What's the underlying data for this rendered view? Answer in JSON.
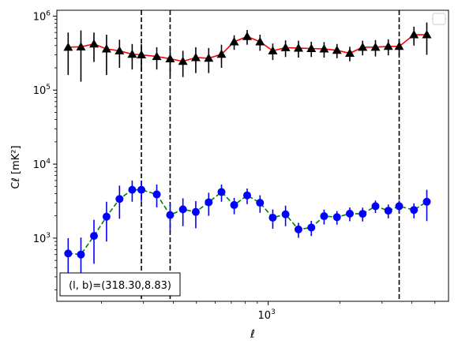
{
  "chart_data": {
    "type": "scatter",
    "xlabel": "ℓ",
    "ylabel": "Cℓ  [mK²]",
    "xscale": "log",
    "yscale": "log",
    "xlim": [
      130,
      5700
    ],
    "ylim": [
      140,
      1200000
    ],
    "xticks": [
      {
        "value": 1000,
        "base": "10",
        "exp": "3"
      }
    ],
    "yticks": [
      {
        "value": 1000,
        "base": "10",
        "exp": "3"
      },
      {
        "value": 10000,
        "base": "10",
        "exp": "4"
      },
      {
        "value": 100000,
        "base": "10",
        "exp": "5"
      },
      {
        "value": 1000000,
        "base": "10",
        "exp": "6"
      }
    ],
    "vlines": [
      294,
      388,
      3540
    ],
    "annotation": "(l, b)=(318.30,8.83)",
    "legend": {
      "placement": "top-right",
      "entries": []
    },
    "series": [
      {
        "marker": "triangle",
        "color": "#000000",
        "line_color": "#ff0000",
        "line_style": "solid",
        "x": [
          145,
          164,
          186,
          210,
          238,
          269,
          294,
          341,
          388,
          439,
          497,
          563,
          637,
          720,
          816,
          924,
          1045,
          1182,
          1339,
          1516,
          1715,
          1942,
          2198,
          2488,
          2816,
          3187,
          3540,
          4083,
          4622
        ],
        "y": [
          380000,
          385000,
          420000,
          360000,
          340000,
          305000,
          300000,
          285000,
          265000,
          245000,
          275000,
          270000,
          305000,
          450000,
          530000,
          450000,
          340000,
          375000,
          370000,
          365000,
          360000,
          345000,
          315000,
          380000,
          380000,
          390000,
          390000,
          560000,
          560000
        ],
        "err_low": [
          220000,
          255000,
          180000,
          200000,
          140000,
          115000,
          120000,
          95000,
          105000,
          95000,
          105000,
          100000,
          105000,
          100000,
          120000,
          110000,
          85000,
          95000,
          95000,
          85000,
          85000,
          75000,
          70000,
          85000,
          95000,
          95000,
          95000,
          160000,
          260000
        ],
        "err_high": [
          220000,
          255000,
          180000,
          200000,
          140000,
          115000,
          120000,
          95000,
          105000,
          95000,
          105000,
          100000,
          105000,
          100000,
          120000,
          110000,
          85000,
          95000,
          95000,
          85000,
          85000,
          75000,
          70000,
          85000,
          95000,
          95000,
          95000,
          160000,
          260000
        ]
      },
      {
        "marker": "circle",
        "color": "#0000ff",
        "line_color": "#008000",
        "line_style": "dashed",
        "x": [
          145,
          164,
          186,
          210,
          238,
          269,
          294,
          341,
          388,
          439,
          497,
          563,
          637,
          720,
          816,
          924,
          1045,
          1182,
          1339,
          1516,
          1715,
          1942,
          2198,
          2488,
          2816,
          3187,
          3540,
          4083,
          4622
        ],
        "y": [
          620,
          600,
          1070,
          1950,
          3380,
          4500,
          4500,
          3900,
          2050,
          2450,
          2260,
          3050,
          4200,
          2800,
          3780,
          3000,
          1890,
          2100,
          1310,
          1390,
          1980,
          1920,
          2140,
          2130,
          2700,
          2350,
          2700,
          2400,
          3100
        ],
        "err_low": [
          300,
          330,
          620,
          1050,
          1550,
          1400,
          1400,
          1300,
          800,
          1000,
          900,
          1050,
          1100,
          700,
          900,
          800,
          550,
          650,
          300,
          320,
          450,
          400,
          450,
          450,
          520,
          500,
          520,
          550,
          1400
        ],
        "err_high": [
          380,
          420,
          700,
          1150,
          1750,
          1500,
          1500,
          1400,
          900,
          1000,
          900,
          1050,
          1100,
          700,
          900,
          800,
          550,
          650,
          300,
          320,
          450,
          400,
          450,
          450,
          520,
          500,
          520,
          550,
          1400
        ]
      }
    ]
  }
}
